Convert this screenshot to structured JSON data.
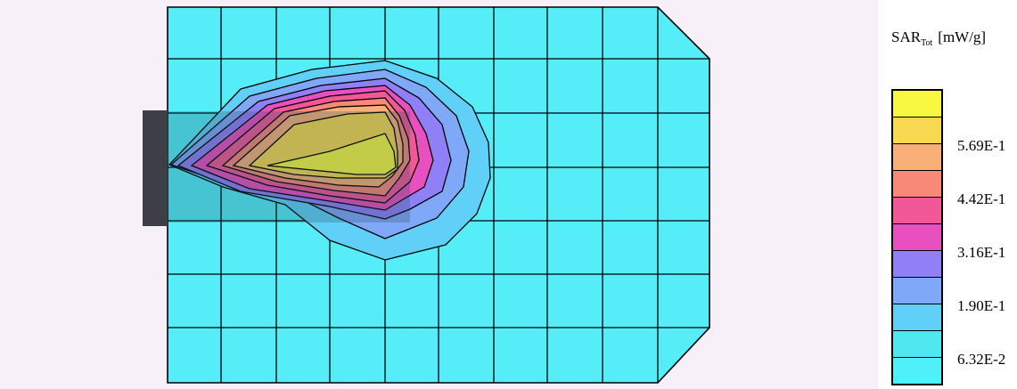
{
  "legend": {
    "title_main": "SAR",
    "title_sub": "Tot",
    "title_unit": "[mW/g]",
    "colors": [
      "#f8f840",
      "#f8d850",
      "#f8b078",
      "#f88878",
      "#f05898",
      "#e850c0",
      "#9080f8",
      "#80a8f8",
      "#60d0f8",
      "#50e8f0",
      "#50f0f8"
    ],
    "ticks": [
      "5.69E-1",
      "4.42E-1",
      "3.16E-1",
      "1.90E-1",
      "6.32E-2"
    ]
  },
  "colors": {
    "background_plate": "#f8f0f8",
    "grid_fill": "#55eef8",
    "feed_block": "#3e3e46"
  }
}
